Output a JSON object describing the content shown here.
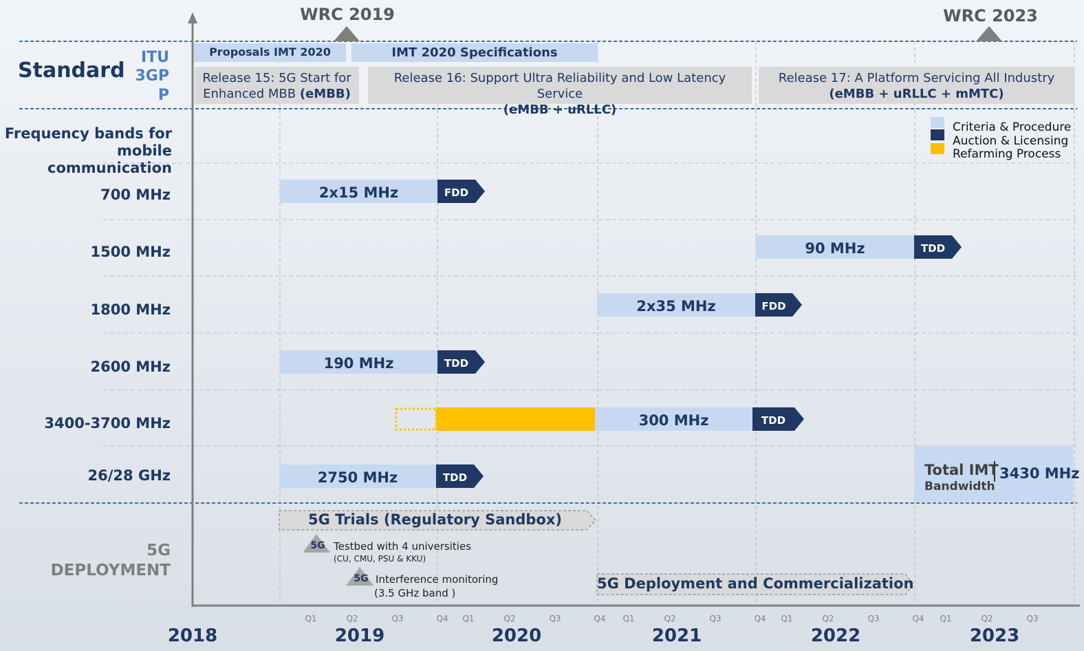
{
  "wrc": [
    "WRC 2019",
    "WRC 2023"
  ],
  "standard": {
    "title": "Standard",
    "itu_label": "ITU",
    "gpp_label": "3GPP",
    "itu_items": [
      "Proposals IMT 2020",
      "IMT 2020 Specifications"
    ],
    "releases": [
      {
        "text": "Release 15: 5G Start for Enhanced MBB",
        "bold": "(eMBB)"
      },
      {
        "text": "Release 16: Support Ultra Reliability and Low Latency Service",
        "bold": "(eMBB + uRLLC)"
      },
      {
        "text": "Release 17: A Platform Servicing All Industry",
        "bold": "(eMBB + uRLLC + mMTC)"
      }
    ]
  },
  "frequency": {
    "title": "Frequency bands for mobile communication",
    "legend": [
      "Criteria & Procedure",
      "Auction & Licensing",
      "Refarming Process"
    ],
    "bands": [
      {
        "label": "700 MHz",
        "amount": "2x15 MHz",
        "mode": "FDD"
      },
      {
        "label": "1500 MHz",
        "amount": "90 MHz",
        "mode": "TDD"
      },
      {
        "label": "1800 MHz",
        "amount": "2x35 MHz",
        "mode": "FDD"
      },
      {
        "label": "2600 MHz",
        "amount": "190 MHz",
        "mode": "TDD"
      },
      {
        "label": "3400-3700 MHz",
        "amount": "300 MHz",
        "mode": "TDD"
      },
      {
        "label": "26/28 GHz",
        "amount": "2750 MHz",
        "mode": "TDD"
      }
    ],
    "total": {
      "label": "Total IMT",
      "sub": "Bandwidth",
      "value": "3430 MHz"
    }
  },
  "deployment": {
    "title": "5G DEPLOYMENT",
    "trials": "5G Trials (Regulatory Sandbox)",
    "milestones": [
      {
        "badge": "5G",
        "text": "Testbed with 4 universities",
        "note": "(CU, CMU, PSU & KKU)"
      },
      {
        "badge": "5G",
        "text": "Interference monitoring",
        "note": "(3.5 GHz band )"
      }
    ],
    "commercial": "5G Deployment and Commercialization"
  },
  "timeline": {
    "years": [
      "2018",
      "2019",
      "2020",
      "2021",
      "2022",
      "2023"
    ],
    "quarters": [
      "Q1",
      "Q2",
      "Q3",
      "Q4"
    ]
  }
}
